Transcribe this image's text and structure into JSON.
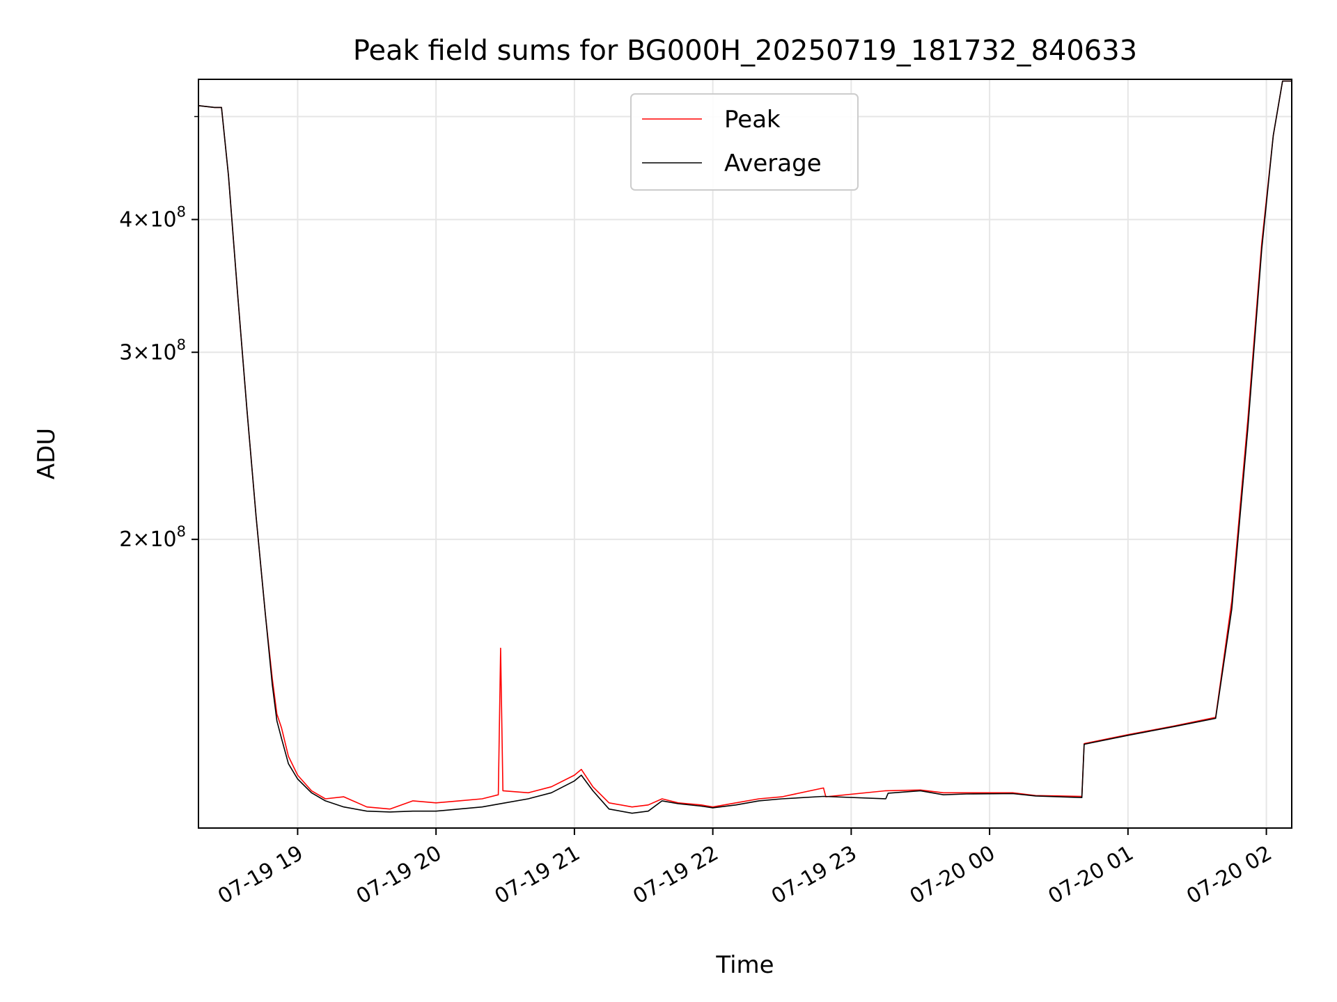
{
  "chart_data": {
    "type": "line",
    "title": "Peak field sums for BG000H_20250719_181732_840633",
    "xlabel": "Time",
    "ylabel": "ADU",
    "y_scale": "log",
    "grid": true,
    "legend_position": "upper center",
    "xlim": [
      "2025-07-19 18:17",
      "2025-07-20 02:11"
    ],
    "ylim": [
      107000000,
      542000000
    ],
    "x_ticks": [
      {
        "t": "2025-07-19 19:00",
        "label": "07-19 19"
      },
      {
        "t": "2025-07-19 20:00",
        "label": "07-19 20"
      },
      {
        "t": "2025-07-19 21:00",
        "label": "07-19 21"
      },
      {
        "t": "2025-07-19 22:00",
        "label": "07-19 22"
      },
      {
        "t": "2025-07-19 23:00",
        "label": "07-19 23"
      },
      {
        "t": "2025-07-20 00:00",
        "label": "07-20 00"
      },
      {
        "t": "2025-07-20 01:00",
        "label": "07-20 01"
      },
      {
        "t": "2025-07-20 02:00",
        "label": "07-20 02"
      }
    ],
    "y_ticks": [
      {
        "value": 200000000,
        "base": "2",
        "exp": "8"
      },
      {
        "value": 300000000,
        "base": "3",
        "exp": "8"
      },
      {
        "value": 400000000,
        "base": "4",
        "exp": "8"
      }
    ],
    "series": [
      {
        "name": "Peak",
        "color": "#ff0000",
        "points": [
          [
            "2025-07-19 18:17",
            512000000
          ],
          [
            "2025-07-19 18:24",
            510000000
          ],
          [
            "2025-07-19 18:27",
            510000000
          ],
          [
            "2025-07-19 18:30",
            440000000
          ],
          [
            "2025-07-19 18:34",
            340000000
          ],
          [
            "2025-07-19 18:38",
            265000000
          ],
          [
            "2025-07-19 18:42",
            210000000
          ],
          [
            "2025-07-19 18:46",
            170000000
          ],
          [
            "2025-07-19 18:49",
            148000000
          ],
          [
            "2025-07-19 18:51",
            137000000
          ],
          [
            "2025-07-19 18:53",
            133000000
          ],
          [
            "2025-07-19 18:56",
            125000000
          ],
          [
            "2025-07-19 19:00",
            120000000
          ],
          [
            "2025-07-19 19:06",
            116000000
          ],
          [
            "2025-07-19 19:12",
            114000000
          ],
          [
            "2025-07-19 19:20",
            114500000
          ],
          [
            "2025-07-19 19:30",
            112000000
          ],
          [
            "2025-07-19 19:40",
            111500000
          ],
          [
            "2025-07-19 19:50",
            113500000
          ],
          [
            "2025-07-19 20:00",
            113000000
          ],
          [
            "2025-07-19 20:10",
            113500000
          ],
          [
            "2025-07-19 20:20",
            114000000
          ],
          [
            "2025-07-19 20:27",
            115000000
          ],
          [
            "2025-07-19 20:28",
            158000000
          ],
          [
            "2025-07-19 20:29",
            116000000
          ],
          [
            "2025-07-19 20:40",
            115500000
          ],
          [
            "2025-07-19 20:50",
            117000000
          ],
          [
            "2025-07-19 21:00",
            120000000
          ],
          [
            "2025-07-19 21:03",
            121500000
          ],
          [
            "2025-07-19 21:08",
            117000000
          ],
          [
            "2025-07-19 21:15",
            113000000
          ],
          [
            "2025-07-19 21:25",
            112000000
          ],
          [
            "2025-07-19 21:32",
            112500000
          ],
          [
            "2025-07-19 21:38",
            114000000
          ],
          [
            "2025-07-19 21:45",
            113000000
          ],
          [
            "2025-07-19 21:55",
            112500000
          ],
          [
            "2025-07-19 22:00",
            112000000
          ],
          [
            "2025-07-19 22:10",
            113000000
          ],
          [
            "2025-07-19 22:20",
            114000000
          ],
          [
            "2025-07-19 22:30",
            114500000
          ],
          [
            "2025-07-19 22:48",
            116700000
          ],
          [
            "2025-07-19 22:49",
            114500000
          ],
          [
            "2025-07-19 23:15",
            116000000
          ],
          [
            "2025-07-19 23:30",
            116200000
          ],
          [
            "2025-07-19 23:40",
            115500000
          ],
          [
            "2025-07-19 23:50",
            115500000
          ],
          [
            "2025-07-20 00:10",
            115500000
          ],
          [
            "2025-07-20 00:20",
            114800000
          ],
          [
            "2025-07-20 00:40",
            114600000
          ],
          [
            "2025-07-20 00:41",
            128500000
          ],
          [
            "2025-07-20 01:00",
            131000000
          ],
          [
            "2025-07-20 01:20",
            133500000
          ],
          [
            "2025-07-20 01:38",
            136000000
          ],
          [
            "2025-07-20 01:45",
            175000000
          ],
          [
            "2025-07-20 01:52",
            260000000
          ],
          [
            "2025-07-20 01:58",
            380000000
          ],
          [
            "2025-07-20 02:03",
            480000000
          ],
          [
            "2025-07-20 02:07",
            540000000
          ],
          [
            "2025-07-20 02:11",
            540000000
          ]
        ]
      },
      {
        "name": "Average",
        "color": "#000000",
        "points": [
          [
            "2025-07-19 18:17",
            512000000
          ],
          [
            "2025-07-19 18:24",
            510000000
          ],
          [
            "2025-07-19 18:27",
            510000000
          ],
          [
            "2025-07-19 18:30",
            440000000
          ],
          [
            "2025-07-19 18:34",
            340000000
          ],
          [
            "2025-07-19 18:38",
            265000000
          ],
          [
            "2025-07-19 18:42",
            210000000
          ],
          [
            "2025-07-19 18:46",
            170000000
          ],
          [
            "2025-07-19 18:49",
            146000000
          ],
          [
            "2025-07-19 18:51",
            135000000
          ],
          [
            "2025-07-19 18:53",
            130000000
          ],
          [
            "2025-07-19 18:56",
            123000000
          ],
          [
            "2025-07-19 19:00",
            119000000
          ],
          [
            "2025-07-19 19:06",
            115500000
          ],
          [
            "2025-07-19 19:12",
            113500000
          ],
          [
            "2025-07-19 19:20",
            112000000
          ],
          [
            "2025-07-19 19:30",
            111000000
          ],
          [
            "2025-07-19 19:40",
            110800000
          ],
          [
            "2025-07-19 19:50",
            111000000
          ],
          [
            "2025-07-19 20:00",
            111000000
          ],
          [
            "2025-07-19 20:10",
            111500000
          ],
          [
            "2025-07-19 20:20",
            112000000
          ],
          [
            "2025-07-19 20:30",
            113000000
          ],
          [
            "2025-07-19 20:40",
            114000000
          ],
          [
            "2025-07-19 20:50",
            115500000
          ],
          [
            "2025-07-19 21:00",
            118500000
          ],
          [
            "2025-07-19 21:03",
            120000000
          ],
          [
            "2025-07-19 21:08",
            116000000
          ],
          [
            "2025-07-19 21:15",
            111500000
          ],
          [
            "2025-07-19 21:25",
            110500000
          ],
          [
            "2025-07-19 21:32",
            111000000
          ],
          [
            "2025-07-19 21:38",
            113500000
          ],
          [
            "2025-07-19 21:45",
            112800000
          ],
          [
            "2025-07-19 21:55",
            112200000
          ],
          [
            "2025-07-19 22:00",
            111800000
          ],
          [
            "2025-07-19 22:10",
            112500000
          ],
          [
            "2025-07-19 22:20",
            113500000
          ],
          [
            "2025-07-19 22:30",
            114000000
          ],
          [
            "2025-07-19 22:48",
            114600000
          ],
          [
            "2025-07-19 23:15",
            114000000
          ],
          [
            "2025-07-19 23:16",
            115400000
          ],
          [
            "2025-07-19 23:30",
            116000000
          ],
          [
            "2025-07-19 23:40",
            115000000
          ],
          [
            "2025-07-19 23:50",
            115200000
          ],
          [
            "2025-07-20 00:10",
            115300000
          ],
          [
            "2025-07-20 00:20",
            114700000
          ],
          [
            "2025-07-20 00:40",
            114300000
          ],
          [
            "2025-07-20 00:41",
            128300000
          ],
          [
            "2025-07-20 01:00",
            130800000
          ],
          [
            "2025-07-20 01:20",
            133300000
          ],
          [
            "2025-07-20 01:38",
            135700000
          ],
          [
            "2025-07-20 01:45",
            172000000
          ],
          [
            "2025-07-20 01:52",
            255000000
          ],
          [
            "2025-07-20 01:58",
            375000000
          ],
          [
            "2025-07-20 02:03",
            480000000
          ],
          [
            "2025-07-20 02:07",
            540000000
          ],
          [
            "2025-07-20 02:11",
            540000000
          ]
        ]
      }
    ]
  }
}
